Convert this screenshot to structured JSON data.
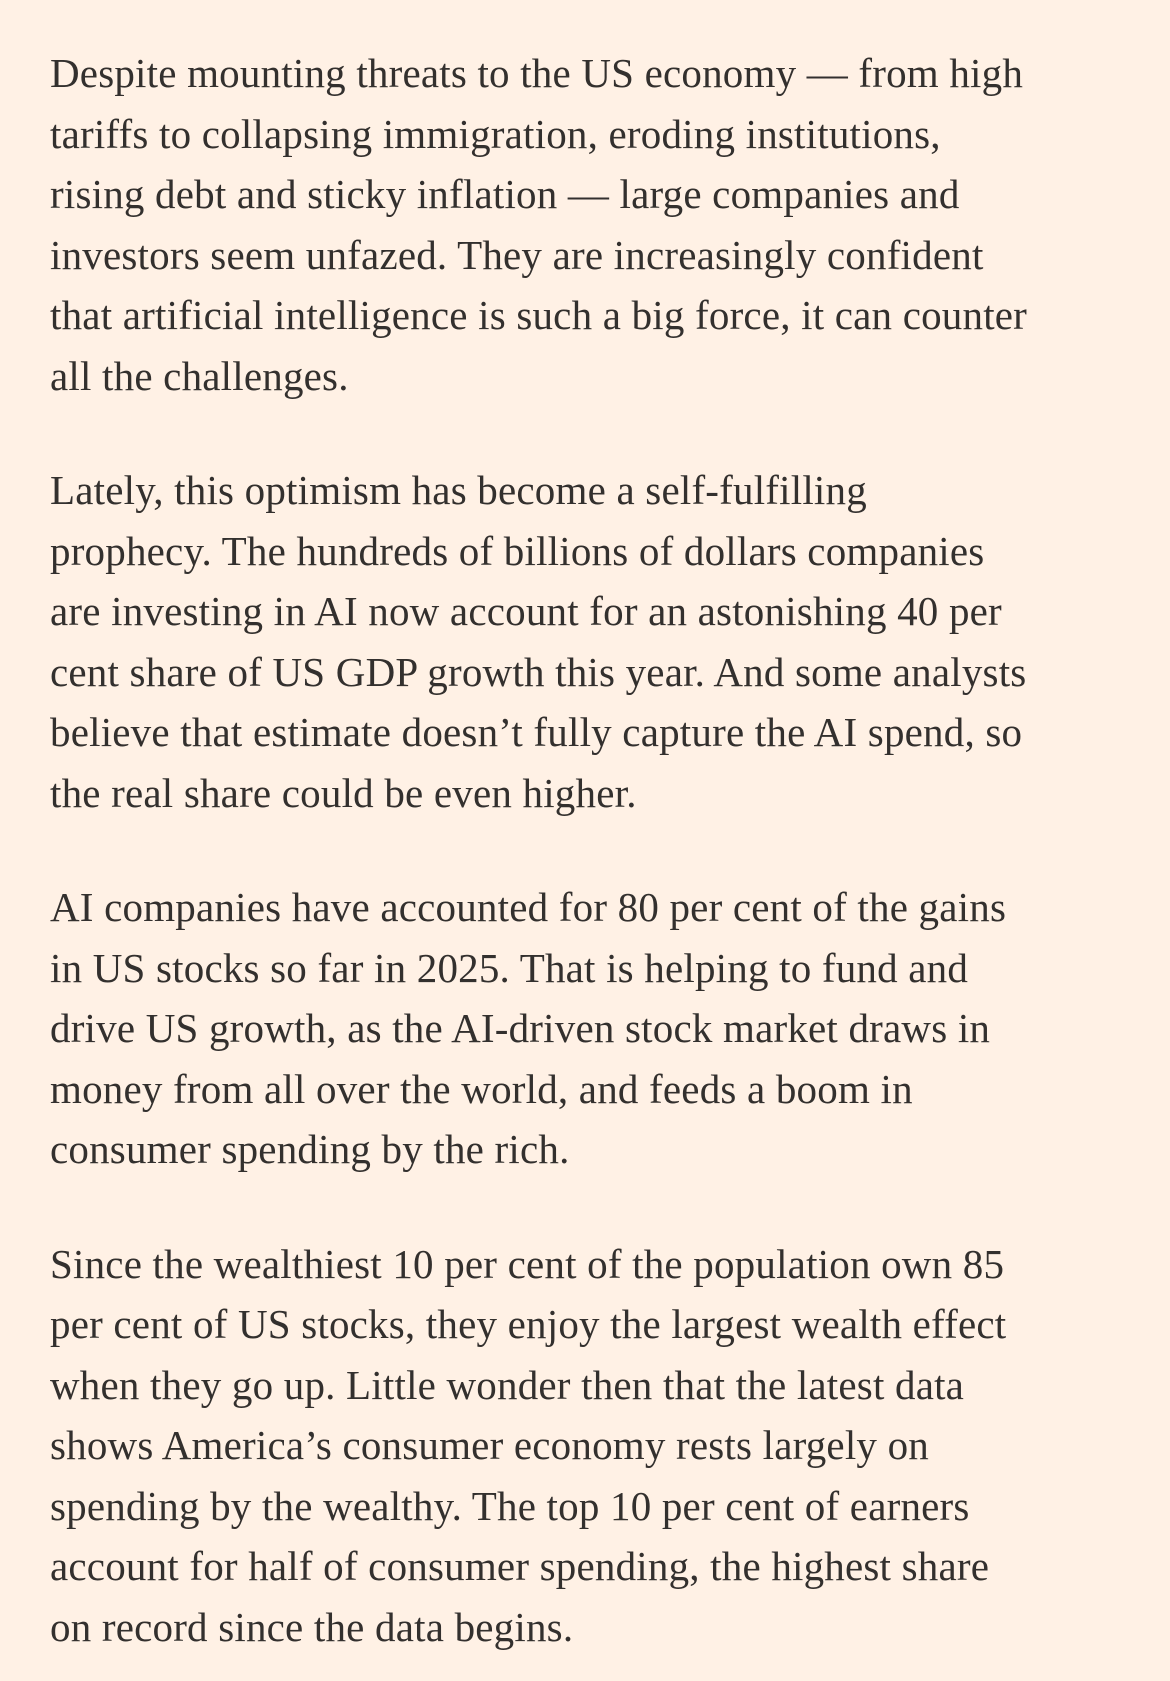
{
  "theme": {
    "background_color": "#FFF1E5",
    "text_color": "#33302E"
  },
  "article": {
    "paragraphs": [
      {
        "text": "Despite mounting threats to the US economy — from high\ntariffs to collapsing immigration, eroding institutions,\nrising debt and sticky inflation — large companies and\ninvestors seem unfazed. They are increasingly confident\nthat artificial intelligence is such a big force, it can counter\nall the challenges."
      },
      {
        "text": "Lately, this optimism has become a self-fulfilling\nprophecy. The hundreds of billions of dollars companies\nare investing in AI now account for an astonishing 40 per\ncent share of US GDP growth this year. And some analysts\nbelieve that estimate doesn’t fully capture the AI spend, so\nthe real share could be even higher."
      },
      {
        "text": "AI companies have accounted for 80 per cent of the gains\nin US stocks so far in 2025. That is helping to fund and\ndrive US growth, as the AI-driven stock market draws in\nmoney from all over the world, and feeds a boom in\nconsumer spending by the rich."
      },
      {
        "text": "Since the wealthiest 10 per cent of the population own 85\nper cent of US stocks, they enjoy the largest wealth effect\nwhen they go up. Little wonder then that the latest data\nshows America’s consumer economy rests largely on\nspending by the wealthy. The top 10 per cent of earners\naccount for half of consumer spending, the highest share\non record since the data begins."
      }
    ]
  }
}
